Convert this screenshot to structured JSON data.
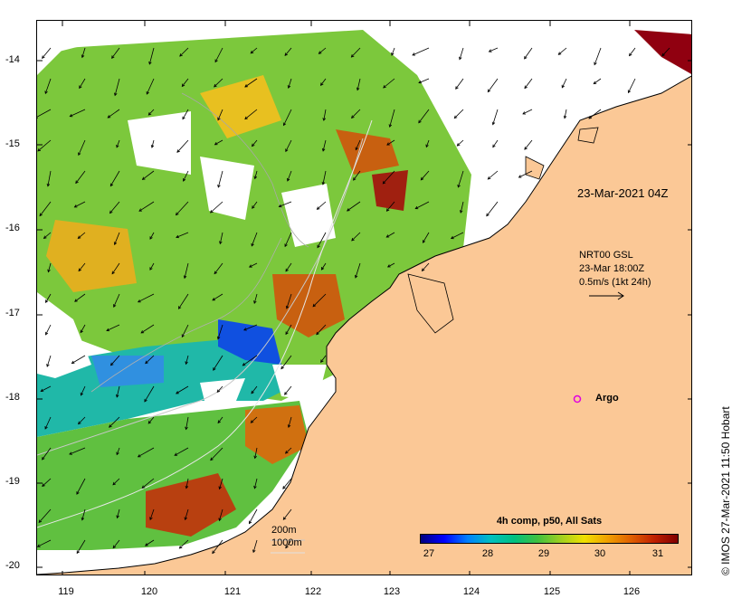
{
  "timestamp": "23-Mar-2021 04Z",
  "current_legend": {
    "line1": "NRT00 GSL",
    "line2": "23-Mar 18:00Z",
    "line3": "0.5m/s (1kt 24h)"
  },
  "argo_label": "Argo",
  "depth_legend": {
    "contour1": "200m",
    "contour2": "1000m"
  },
  "colorbar": {
    "title": "4h comp, p50, All Sats",
    "ticks": [
      "27",
      "28",
      "29",
      "30",
      "31"
    ],
    "range": [
      26.6,
      31.4
    ]
  },
  "credit": "© IMOS 27-Mar-2021 11:50 Hobart",
  "axes": {
    "lon_ticks": [
      "119",
      "120",
      "121",
      "122",
      "123",
      "124",
      "125",
      "126"
    ],
    "lat_ticks": [
      "-14",
      "-15",
      "-16",
      "-17",
      "-18",
      "-19",
      "-20"
    ]
  },
  "colors": {
    "land": "#fbc896",
    "coast": "#000000",
    "argo": "#e000e0"
  }
}
